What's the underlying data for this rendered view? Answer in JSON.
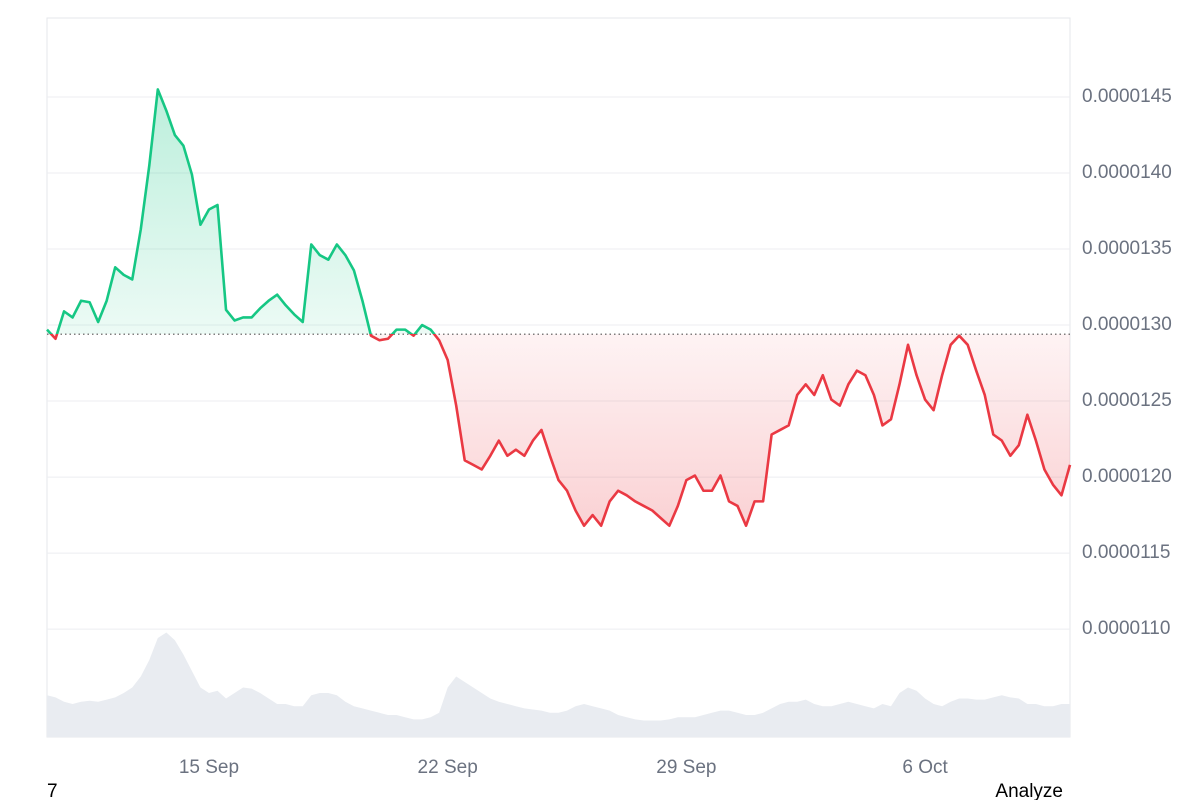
{
  "chart_data": {
    "type": "line",
    "categories": [
      null,
      null,
      null,
      null,
      null,
      null,
      null,
      null,
      null,
      null,
      null,
      null,
      null,
      null,
      null,
      null,
      null,
      null,
      null,
      "15 Sep",
      null,
      null,
      null,
      null,
      null,
      null,
      null,
      null,
      null,
      null,
      null,
      null,
      null,
      null,
      null,
      null,
      null,
      null,
      null,
      null,
      null,
      null,
      null,
      null,
      null,
      null,
      null,
      "22 Sep",
      null,
      null,
      null,
      null,
      null,
      null,
      null,
      null,
      null,
      null,
      null,
      null,
      null,
      null,
      null,
      null,
      null,
      null,
      null,
      null,
      null,
      null,
      null,
      null,
      null,
      null,
      null,
      "29 Sep",
      null,
      null,
      null,
      null,
      null,
      null,
      null,
      null,
      null,
      null,
      null,
      null,
      null,
      null,
      null,
      null,
      null,
      null,
      null,
      null,
      null,
      null,
      null,
      null,
      null,
      null,
      null,
      "6 Oct",
      null,
      null,
      null,
      null,
      null,
      null,
      null,
      null,
      null,
      null,
      null,
      null,
      null,
      null,
      null,
      null,
      null
    ],
    "values": [
      1.297e-05,
      1.291e-05,
      1.309e-05,
      1.305e-05,
      1.316e-05,
      1.315e-05,
      1.302e-05,
      1.316e-05,
      1.338e-05,
      1.333e-05,
      1.33e-05,
      1.363e-05,
      1.405e-05,
      1.455e-05,
      1.441e-05,
      1.425e-05,
      1.418e-05,
      1.399e-05,
      1.366e-05,
      1.376e-05,
      1.379e-05,
      1.31e-05,
      1.303e-05,
      1.305e-05,
      1.305e-05,
      1.311e-05,
      1.316e-05,
      1.32e-05,
      1.313e-05,
      1.307e-05,
      1.302e-05,
      1.353e-05,
      1.346e-05,
      1.343e-05,
      1.353e-05,
      1.346e-05,
      1.336e-05,
      1.316e-05,
      1.293e-05,
      1.29e-05,
      1.291e-05,
      1.297e-05,
      1.297e-05,
      1.293e-05,
      1.3e-05,
      1.297e-05,
      1.29e-05,
      1.277e-05,
      1.247e-05,
      1.211e-05,
      1.208e-05,
      1.205e-05,
      1.214e-05,
      1.224e-05,
      1.214e-05,
      1.218e-05,
      1.214e-05,
      1.224e-05,
      1.231e-05,
      1.214e-05,
      1.198e-05,
      1.191e-05,
      1.178e-05,
      1.168e-05,
      1.175e-05,
      1.168e-05,
      1.184e-05,
      1.191e-05,
      1.188e-05,
      1.184e-05,
      1.181e-05,
      1.178e-05,
      1.173e-05,
      1.168e-05,
      1.181e-05,
      1.198e-05,
      1.201e-05,
      1.191e-05,
      1.191e-05,
      1.201e-05,
      1.184e-05,
      1.181e-05,
      1.168e-05,
      1.184e-05,
      1.184e-05,
      1.228e-05,
      1.231e-05,
      1.234e-05,
      1.254e-05,
      1.261e-05,
      1.254e-05,
      1.267e-05,
      1.251e-05,
      1.247e-05,
      1.261e-05,
      1.27e-05,
      1.267e-05,
      1.254e-05,
      1.234e-05,
      1.238e-05,
      1.261e-05,
      1.287e-05,
      1.267e-05,
      1.251e-05,
      1.244e-05,
      1.267e-05,
      1.287e-05,
      1.293e-05,
      1.287e-05,
      1.27e-05,
      1.254e-05,
      1.228e-05,
      1.224e-05,
      1.214e-05,
      1.221e-05,
      1.241e-05,
      1.224e-05,
      1.205e-05,
      1.195e-05,
      1.188e-05,
      1.208e-05
    ],
    "baseline": 1.294e-05,
    "up_color": "#16c784",
    "down_color": "#ea3943",
    "ylim": [
      1.029e-05,
      1.502e-05
    ],
    "yticks": [
      {
        "value": 1.1e-05,
        "label": "0.0000110"
      },
      1.15e-05,
      {
        "value": 1.2e-05,
        "label": "0.0000120"
      },
      1.25e-05,
      {
        "value": 1.3e-05,
        "label": "0.0000130"
      },
      1.35e-05,
      {
        "value": 1.4e-05,
        "label": "0.0000140"
      },
      1.45e-05
    ],
    "grid": true,
    "volume": {
      "color": "#e9ecf1",
      "ylim": [
        0,
        100
      ],
      "values": [
        38,
        36,
        32,
        30,
        32,
        33,
        32,
        34,
        36,
        40,
        45,
        55,
        70,
        90,
        95,
        88,
        75,
        60,
        45,
        40,
        42,
        35,
        40,
        45,
        44,
        40,
        35,
        30,
        30,
        28,
        28,
        38,
        40,
        40,
        38,
        32,
        28,
        26,
        24,
        22,
        20,
        20,
        18,
        16,
        16,
        18,
        22,
        45,
        55,
        50,
        45,
        40,
        35,
        32,
        30,
        28,
        26,
        25,
        24,
        22,
        22,
        24,
        28,
        30,
        28,
        26,
        24,
        20,
        18,
        16,
        15,
        15,
        15,
        16,
        18,
        18,
        18,
        20,
        22,
        24,
        24,
        22,
        20,
        20,
        22,
        26,
        30,
        32,
        32,
        34,
        30,
        28,
        28,
        30,
        32,
        30,
        28,
        26,
        30,
        28,
        40,
        45,
        42,
        35,
        30,
        28,
        32,
        35,
        35,
        34,
        34,
        36,
        38,
        36,
        35,
        30,
        30,
        28,
        28,
        30,
        30
      ]
    }
  },
  "footer": {
    "left": "7",
    "right": "Analyze"
  }
}
